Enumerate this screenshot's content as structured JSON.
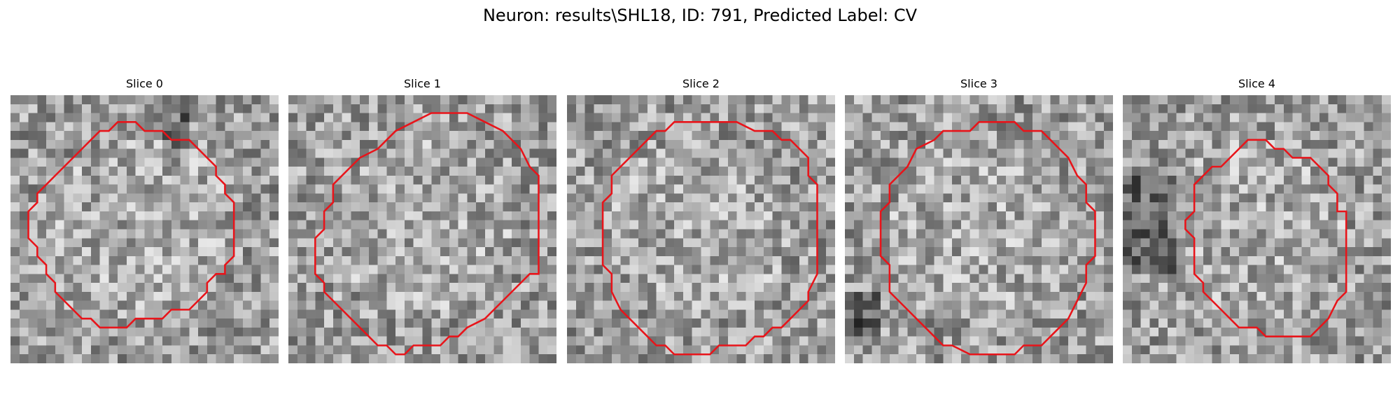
{
  "figure": {
    "title": "Neuron: results\\SHL18, ID: 791, Predicted Label: CV"
  },
  "contour_color": "#e8141a",
  "panels": [
    {
      "title": "Slice 0",
      "seed": 11
    },
    {
      "title": "Slice 1",
      "seed": 23
    },
    {
      "title": "Slice 2",
      "seed": 37
    },
    {
      "title": "Slice 3",
      "seed": 41
    },
    {
      "title": "Slice 4",
      "seed": 53
    }
  ]
}
